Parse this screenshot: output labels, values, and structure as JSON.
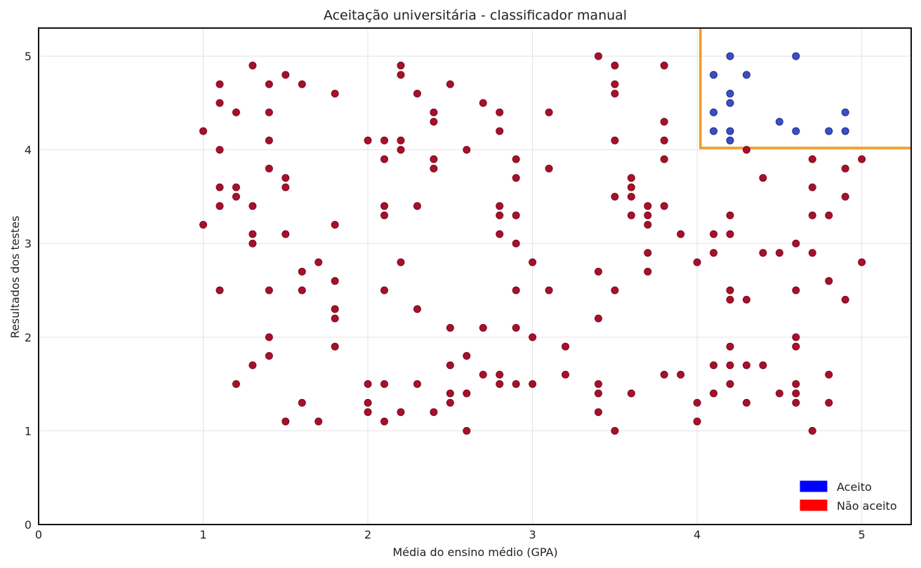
{
  "chart_data": {
    "type": "scatter",
    "title": "Aceitação universitária - classificador manual",
    "xlabel": "Média do ensino médio (GPA)",
    "ylabel": "Resultados dos testes",
    "xlim": [
      0,
      5.3
    ],
    "ylim": [
      0,
      5.3
    ],
    "xticks": [
      0,
      1,
      2,
      3,
      4,
      5
    ],
    "yticks": [
      0,
      1,
      2,
      3,
      4,
      5
    ],
    "grid": true,
    "legend_position": "bottom-right",
    "legend": [
      {
        "label": "Aceito",
        "color": "#0000ff"
      },
      {
        "label": "Não aceito",
        "color": "#ff0000"
      }
    ],
    "boundary": {
      "color": "#f39c1f",
      "points": [
        [
          4.02,
          5.3
        ],
        [
          4.02,
          4.02
        ],
        [
          5.3,
          4.02
        ]
      ]
    },
    "series": [
      {
        "name": "Aceito",
        "color": "#3a4fc7",
        "edge": "#1a2a80",
        "points": [
          [
            4.1,
            4.8
          ],
          [
            4.2,
            5.0
          ],
          [
            4.3,
            4.8
          ],
          [
            4.6,
            5.0
          ],
          [
            4.2,
            4.6
          ],
          [
            4.2,
            4.5
          ],
          [
            4.1,
            4.4
          ],
          [
            4.9,
            4.4
          ],
          [
            4.5,
            4.3
          ],
          [
            4.1,
            4.2
          ],
          [
            4.2,
            4.2
          ],
          [
            4.6,
            4.2
          ],
          [
            4.8,
            4.2
          ],
          [
            4.9,
            4.2
          ],
          [
            4.2,
            4.1
          ]
        ]
      },
      {
        "name": "Não aceito",
        "color": "#a8102a",
        "edge": "#7a0a1e",
        "points": [
          [
            1.0,
            4.2
          ],
          [
            1.0,
            3.2
          ],
          [
            1.1,
            4.7
          ],
          [
            1.1,
            4.5
          ],
          [
            1.1,
            4.0
          ],
          [
            1.1,
            3.6
          ],
          [
            1.1,
            3.4
          ],
          [
            1.1,
            2.5
          ],
          [
            1.2,
            4.4
          ],
          [
            1.2,
            3.6
          ],
          [
            1.2,
            3.5
          ],
          [
            1.2,
            1.5
          ],
          [
            1.3,
            4.9
          ],
          [
            1.3,
            3.4
          ],
          [
            1.3,
            3.1
          ],
          [
            1.3,
            3.0
          ],
          [
            1.3,
            1.7
          ],
          [
            1.4,
            4.7
          ],
          [
            1.4,
            4.4
          ],
          [
            1.4,
            4.1
          ],
          [
            1.4,
            3.8
          ],
          [
            1.4,
            2.5
          ],
          [
            1.4,
            2.0
          ],
          [
            1.4,
            1.8
          ],
          [
            1.5,
            4.8
          ],
          [
            1.5,
            3.7
          ],
          [
            1.5,
            3.6
          ],
          [
            1.5,
            3.1
          ],
          [
            1.5,
            1.1
          ],
          [
            1.6,
            4.7
          ],
          [
            1.6,
            2.7
          ],
          [
            1.6,
            2.5
          ],
          [
            1.6,
            1.3
          ],
          [
            1.7,
            2.8
          ],
          [
            1.7,
            1.1
          ],
          [
            1.8,
            4.6
          ],
          [
            1.8,
            3.2
          ],
          [
            1.8,
            2.6
          ],
          [
            1.8,
            2.3
          ],
          [
            1.8,
            2.2
          ],
          [
            1.8,
            1.9
          ],
          [
            2.0,
            4.1
          ],
          [
            2.0,
            1.5
          ],
          [
            2.0,
            1.3
          ],
          [
            2.0,
            1.2
          ],
          [
            2.1,
            4.1
          ],
          [
            2.1,
            3.9
          ],
          [
            2.1,
            3.4
          ],
          [
            2.1,
            3.3
          ],
          [
            2.1,
            2.5
          ],
          [
            2.1,
            1.5
          ],
          [
            2.1,
            1.1
          ],
          [
            2.2,
            4.9
          ],
          [
            2.2,
            4.8
          ],
          [
            2.2,
            4.1
          ],
          [
            2.2,
            4.0
          ],
          [
            2.2,
            2.8
          ],
          [
            2.2,
            1.2
          ],
          [
            2.3,
            4.6
          ],
          [
            2.3,
            3.4
          ],
          [
            2.3,
            2.3
          ],
          [
            2.3,
            1.5
          ],
          [
            2.4,
            4.4
          ],
          [
            2.4,
            4.3
          ],
          [
            2.4,
            3.9
          ],
          [
            2.4,
            3.8
          ],
          [
            2.4,
            1.2
          ],
          [
            2.5,
            4.7
          ],
          [
            2.5,
            2.1
          ],
          [
            2.5,
            1.7
          ],
          [
            2.5,
            1.4
          ],
          [
            2.5,
            1.3
          ],
          [
            2.6,
            4.0
          ],
          [
            2.6,
            1.8
          ],
          [
            2.6,
            1.4
          ],
          [
            2.6,
            1.0
          ],
          [
            2.7,
            4.5
          ],
          [
            2.7,
            2.1
          ],
          [
            2.7,
            1.6
          ],
          [
            2.8,
            4.4
          ],
          [
            2.8,
            4.2
          ],
          [
            2.8,
            3.4
          ],
          [
            2.8,
            3.3
          ],
          [
            2.8,
            3.1
          ],
          [
            2.8,
            1.6
          ],
          [
            2.8,
            1.5
          ],
          [
            2.9,
            3.9
          ],
          [
            2.9,
            3.7
          ],
          [
            2.9,
            3.3
          ],
          [
            2.9,
            3.0
          ],
          [
            2.9,
            2.5
          ],
          [
            2.9,
            2.1
          ],
          [
            2.9,
            1.5
          ],
          [
            3.0,
            2.8
          ],
          [
            3.0,
            2.0
          ],
          [
            3.0,
            1.5
          ],
          [
            3.1,
            4.4
          ],
          [
            3.1,
            3.8
          ],
          [
            3.1,
            2.5
          ],
          [
            3.2,
            1.9
          ],
          [
            3.2,
            1.6
          ],
          [
            3.4,
            5.0
          ],
          [
            3.4,
            2.7
          ],
          [
            3.4,
            2.2
          ],
          [
            3.4,
            1.5
          ],
          [
            3.4,
            1.4
          ],
          [
            3.4,
            1.2
          ],
          [
            3.5,
            4.9
          ],
          [
            3.5,
            4.7
          ],
          [
            3.5,
            4.6
          ],
          [
            3.5,
            4.1
          ],
          [
            3.5,
            3.5
          ],
          [
            3.5,
            2.5
          ],
          [
            3.5,
            1.0
          ],
          [
            3.6,
            3.7
          ],
          [
            3.6,
            3.6
          ],
          [
            3.6,
            3.5
          ],
          [
            3.6,
            3.3
          ],
          [
            3.6,
            1.4
          ],
          [
            3.7,
            3.4
          ],
          [
            3.7,
            3.3
          ],
          [
            3.7,
            3.2
          ],
          [
            3.7,
            2.9
          ],
          [
            3.7,
            2.7
          ],
          [
            3.8,
            4.9
          ],
          [
            3.8,
            4.3
          ],
          [
            3.8,
            4.1
          ],
          [
            3.8,
            3.9
          ],
          [
            3.8,
            3.4
          ],
          [
            3.8,
            1.6
          ],
          [
            3.9,
            3.1
          ],
          [
            3.9,
            1.6
          ],
          [
            4.0,
            2.8
          ],
          [
            4.0,
            1.3
          ],
          [
            4.0,
            1.1
          ],
          [
            4.1,
            3.1
          ],
          [
            4.1,
            2.9
          ],
          [
            4.1,
            1.7
          ],
          [
            4.1,
            1.4
          ],
          [
            4.2,
            3.3
          ],
          [
            4.2,
            3.1
          ],
          [
            4.2,
            2.5
          ],
          [
            4.2,
            2.4
          ],
          [
            4.2,
            1.9
          ],
          [
            4.2,
            1.7
          ],
          [
            4.2,
            1.5
          ],
          [
            4.3,
            4.0
          ],
          [
            4.3,
            2.4
          ],
          [
            4.3,
            1.7
          ],
          [
            4.3,
            1.3
          ],
          [
            4.4,
            3.7
          ],
          [
            4.4,
            2.9
          ],
          [
            4.4,
            1.7
          ],
          [
            4.5,
            2.9
          ],
          [
            4.5,
            1.4
          ],
          [
            4.6,
            3.0
          ],
          [
            4.6,
            2.5
          ],
          [
            4.6,
            2.0
          ],
          [
            4.6,
            1.9
          ],
          [
            4.6,
            1.5
          ],
          [
            4.6,
            1.4
          ],
          [
            4.6,
            1.3
          ],
          [
            4.7,
            3.9
          ],
          [
            4.7,
            3.6
          ],
          [
            4.7,
            3.3
          ],
          [
            4.7,
            2.9
          ],
          [
            4.7,
            1.0
          ],
          [
            4.8,
            3.3
          ],
          [
            4.8,
            2.6
          ],
          [
            4.8,
            1.6
          ],
          [
            4.8,
            1.3
          ],
          [
            4.9,
            3.8
          ],
          [
            4.9,
            3.5
          ],
          [
            4.9,
            2.4
          ],
          [
            5.0,
            3.9
          ],
          [
            5.0,
            2.8
          ]
        ]
      }
    ]
  }
}
